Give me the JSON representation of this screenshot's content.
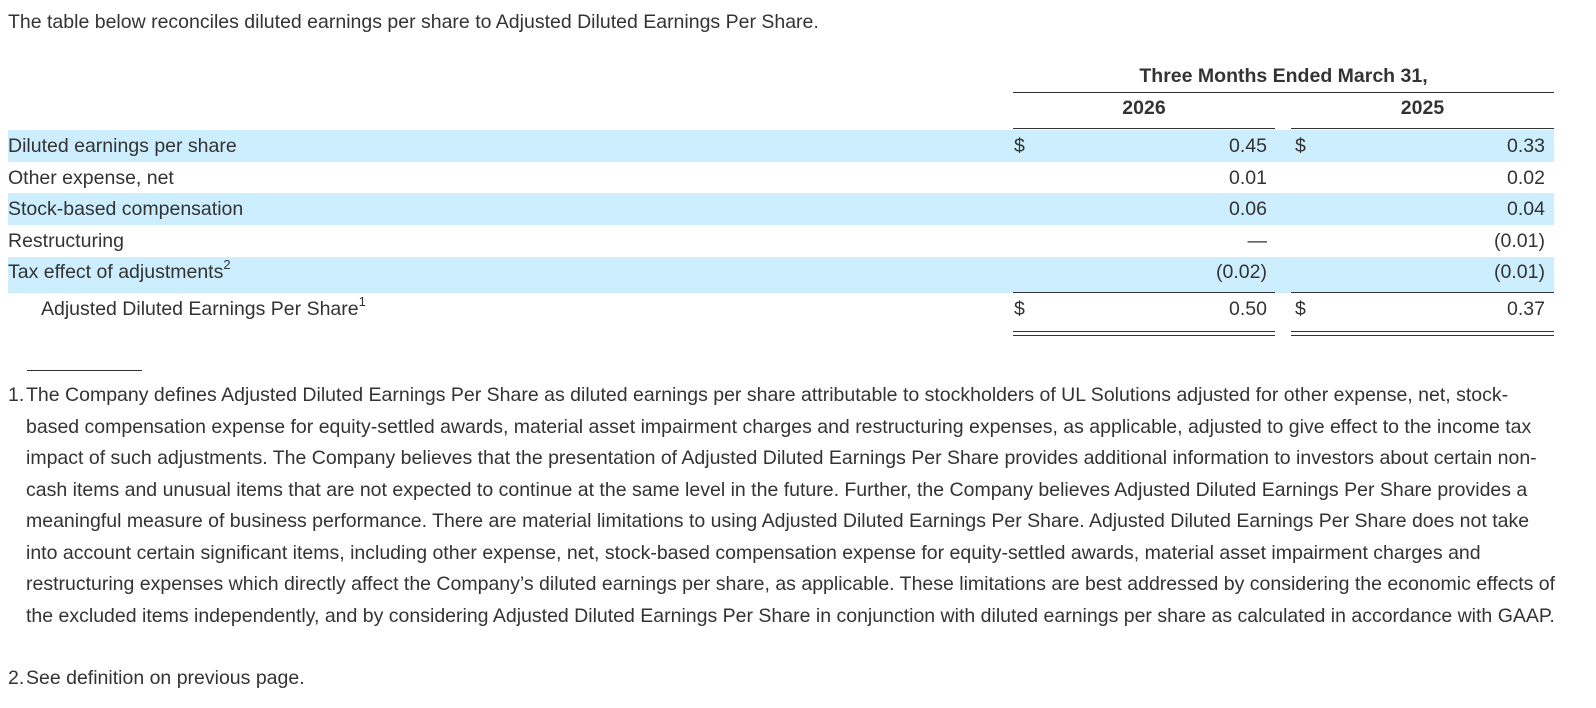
{
  "intro": "The table below reconciles diluted earnings per share to Adjusted Diluted Earnings Per Share.",
  "table": {
    "period_header": "Three Months Ended March 31,",
    "years": [
      "2026",
      "2025"
    ],
    "rows": [
      {
        "label": "Diluted earnings per share",
        "sup": "",
        "cur1": "$",
        "v1": "0.45",
        "cur2": "$",
        "v2": "0.33"
      },
      {
        "label": "Other expense, net",
        "sup": "",
        "cur1": "",
        "v1": "0.01",
        "cur2": "",
        "v2": "0.02"
      },
      {
        "label": "Stock-based compensation",
        "sup": "",
        "cur1": "",
        "v1": "0.06",
        "cur2": "",
        "v2": "0.04"
      },
      {
        "label": "Restructuring",
        "sup": "",
        "cur1": "",
        "v1": "—",
        "cur2": "",
        "v2": "(0.01)"
      },
      {
        "label": "Tax effect of adjustments",
        "sup": "2",
        "cur1": "",
        "v1": "(0.02)",
        "cur2": "",
        "v2": "(0.01)"
      },
      {
        "label": "Adjusted Diluted Earnings Per Share",
        "sup": "1",
        "cur1": "$",
        "v1": "0.50",
        "cur2": "$",
        "v2": "0.37"
      }
    ]
  },
  "footnotes": [
    {
      "num": "1.",
      "text": "The Company defines Adjusted Diluted Earnings Per Share as diluted earnings per share attributable to stockholders of UL Solutions adjusted for other expense, net, stock-based compensation expense for equity-settled awards, material asset impairment charges and restructuring expenses, as applicable, adjusted to give effect to the income tax impact of such adjustments. The Company believes that the presentation of Adjusted Diluted Earnings Per Share provides additional information to investors about certain non-cash items and unusual items that are not expected to continue at the same level in the future. Further, the Company believes Adjusted Diluted Earnings Per Share provides a meaningful measure of business performance. There are material limitations to using Adjusted Diluted Earnings Per Share. Adjusted Diluted Earnings Per Share does not take into account certain significant items, including other expense, net, stock-based compensation expense for equity-settled awards, material asset impairment charges and restructuring expenses which directly affect the Company’s diluted earnings per share, as applicable. These limitations are best addressed by considering the economic effects of the excluded items independently, and by considering Adjusted Diluted Earnings Per Share in conjunction with diluted earnings per share as calculated in accordance with GAAP."
    },
    {
      "num": "2.",
      "text": "See definition on previous page."
    }
  ]
}
